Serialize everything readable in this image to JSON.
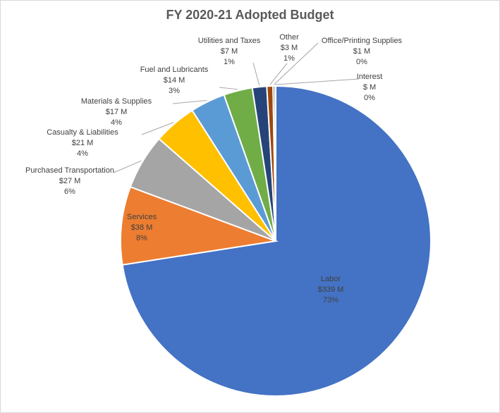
{
  "chart_data": {
    "type": "pie",
    "title": "FY 2020-21 Adopted Budget",
    "slices": [
      {
        "name": "Labor",
        "amount_label": "$339 M",
        "percent_label": "73%",
        "value": 339,
        "color": "#4472C4"
      },
      {
        "name": "Services",
        "amount_label": "$38 M",
        "percent_label": "8%",
        "value": 38,
        "color": "#ED7D31"
      },
      {
        "name": "Purchased Transportation",
        "amount_label": "$27 M",
        "percent_label": "6%",
        "value": 27,
        "color": "#A5A5A5"
      },
      {
        "name": "Casualty & Liabilities",
        "amount_label": "$21 M",
        "percent_label": "4%",
        "value": 21,
        "color": "#FFC000"
      },
      {
        "name": "Materials & Supplies",
        "amount_label": "$17 M",
        "percent_label": "4%",
        "value": 17,
        "color": "#5B9BD5"
      },
      {
        "name": "Fuel and Lubricants",
        "amount_label": "$14 M",
        "percent_label": "3%",
        "value": 14,
        "color": "#70AD47"
      },
      {
        "name": "Utilities and Taxes",
        "amount_label": "$7 M",
        "percent_label": "1%",
        "value": 7,
        "color": "#264478"
      },
      {
        "name": "Other",
        "amount_label": "$3 M",
        "percent_label": "1%",
        "value": 3,
        "color": "#9E480E"
      },
      {
        "name": "Office/Printing Supplies",
        "amount_label": "$1 M",
        "percent_label": "0%",
        "value": 1,
        "color": "#636363"
      },
      {
        "name": "Interest",
        "amount_label": "$ M",
        "percent_label": "0%",
        "value": 0.3,
        "color": "#997300"
      }
    ]
  }
}
